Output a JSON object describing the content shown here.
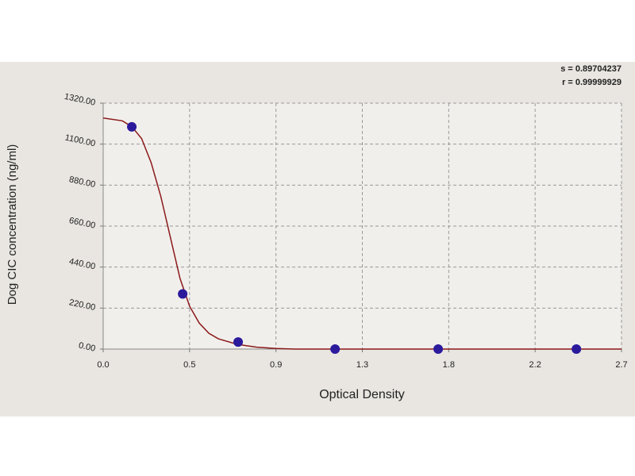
{
  "chart_data": {
    "type": "scatter",
    "xlabel": "Optical Density",
    "ylabel": "Dog CIC concentration (ng/ml)",
    "annotations": [
      "s = 0.89704237",
      "r = 0.99999929"
    ],
    "xlim": [
      0,
      2.7
    ],
    "ylim": [
      0,
      1320
    ],
    "xticks": [
      {
        "value": 0,
        "label": "0.0"
      },
      {
        "value": 0.45,
        "label": "0.5"
      },
      {
        "value": 0.9,
        "label": "0.9"
      },
      {
        "value": 1.35,
        "label": "1.3"
      },
      {
        "value": 1.8,
        "label": "1.8"
      },
      {
        "value": 2.25,
        "label": "2.2"
      },
      {
        "value": 2.7,
        "label": "2.7"
      }
    ],
    "yticks": [
      {
        "value": 0,
        "label": "0.00"
      },
      {
        "value": 220,
        "label": "220.00"
      },
      {
        "value": 440,
        "label": "440.00"
      },
      {
        "value": 660,
        "label": "660.00"
      },
      {
        "value": 880,
        "label": "880.00"
      },
      {
        "value": 1100,
        "label": "1100.00"
      },
      {
        "value": 1320,
        "label": "1320.00"
      }
    ],
    "grid": true,
    "x": [
      0.149,
      0.414,
      0.703,
      1.208,
      1.745,
      2.465
    ],
    "values": [
      1193,
      296,
      38,
      0,
      0,
      0
    ],
    "color": "#2b1a9c",
    "fit": {
      "color": "#8b1a1a",
      "x": [
        0,
        0.1,
        0.15,
        0.2,
        0.25,
        0.3,
        0.35,
        0.4,
        0.45,
        0.5,
        0.55,
        0.6,
        0.7,
        0.8,
        0.9,
        1.0,
        2.7
      ],
      "values": [
        1240,
        1225,
        1193,
        1130,
        1000,
        820,
        600,
        380,
        230,
        140,
        85,
        55,
        25,
        10,
        3,
        0,
        0
      ]
    }
  }
}
